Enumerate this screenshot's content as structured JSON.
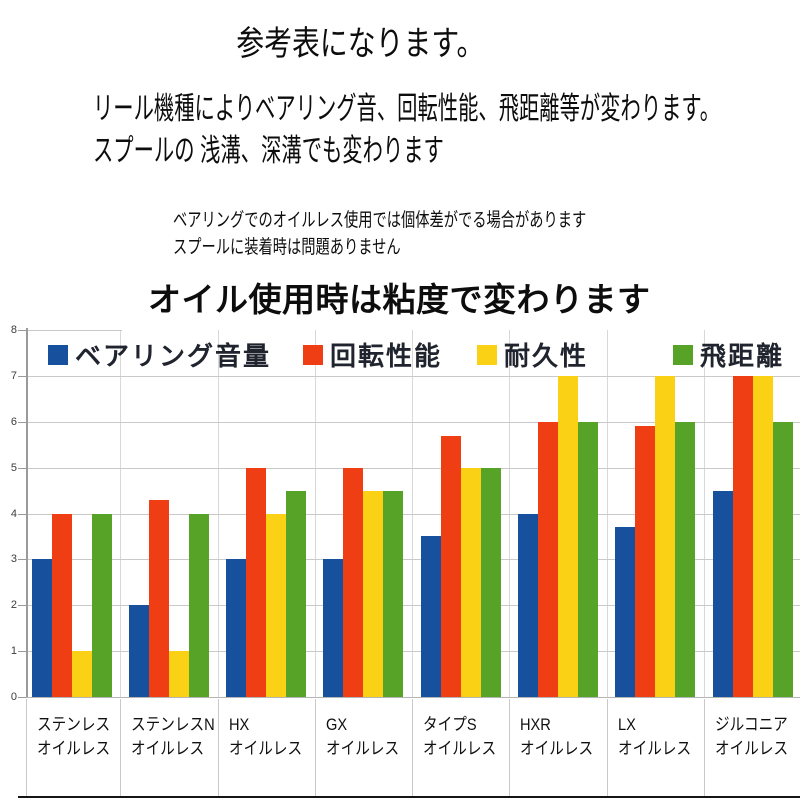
{
  "header": {
    "title": "参考表になります。",
    "para_line1": "リール機種によりベアリング音、回転性能、飛距離等が変わります。",
    "para_line2": "スプールの 浅溝、深溝でも変わります",
    "note_line1": "ベアリングでのオイルレス使用では個体差がでる場合があります",
    "note_line2": "スプールに装着時は問題ありません",
    "highlight": "オイル使用時は粘度で変わります"
  },
  "chart_data": {
    "type": "bar",
    "categories": [
      {
        "line1": "ステンレス",
        "line2": "オイルレス"
      },
      {
        "line1": "ステンレスN",
        "line2": "オイルレス"
      },
      {
        "line1": "HX",
        "line2": "オイルレス"
      },
      {
        "line1": "GX",
        "line2": "オイルレス"
      },
      {
        "line1": "タイプS",
        "line2": "オイルレス"
      },
      {
        "line1": "HXR",
        "line2": "オイルレス"
      },
      {
        "line1": "LX",
        "line2": "オイルレス"
      },
      {
        "line1": "ジルコニア",
        "line2": "オイルレス"
      }
    ],
    "series": [
      {
        "name": "ベアリング音量",
        "color": "#17519E",
        "values": [
          3,
          2,
          3,
          3,
          3.5,
          4,
          3.7,
          4.5
        ]
      },
      {
        "name": "回転性能",
        "color": "#EF3E14",
        "values": [
          4,
          4.3,
          5,
          5,
          5.7,
          6,
          5.9,
          7
        ]
      },
      {
        "name": "耐久性",
        "color": "#FBD116",
        "values": [
          1,
          1,
          4,
          4.5,
          5,
          7,
          7,
          7
        ]
      },
      {
        "name": "飛距離",
        "color": "#57A327",
        "values": [
          4,
          4,
          4.5,
          4.5,
          5,
          6,
          6,
          6
        ]
      }
    ],
    "ylim": [
      0,
      8
    ],
    "yticks": [
      0,
      1,
      2,
      3,
      4,
      5,
      6,
      7,
      8
    ],
    "grid": true,
    "legend_position": "top-inside",
    "xlabel": "",
    "ylabel": ""
  }
}
